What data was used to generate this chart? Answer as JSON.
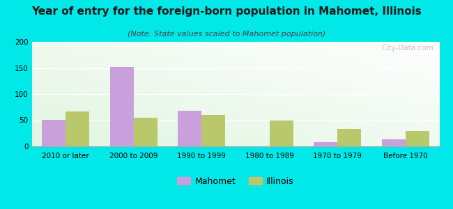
{
  "title": "Year of entry for the foreign-born population in Mahomet, Illinois",
  "subtitle": "(Note: State values scaled to Mahomet population)",
  "categories": [
    "2010 or later",
    "2000 to 2009",
    "1990 to 1999",
    "1980 to 1989",
    "1970 to 1979",
    "Before 1970"
  ],
  "mahomet_values": [
    51,
    152,
    68,
    0,
    8,
    14
  ],
  "illinois_values": [
    67,
    55,
    60,
    50,
    34,
    30
  ],
  "mahomet_color": "#c9a0dc",
  "illinois_color": "#b8c86a",
  "ylim": [
    0,
    200
  ],
  "yticks": [
    0,
    50,
    100,
    150,
    200
  ],
  "background_outer": "#00e8e8",
  "bar_width": 0.35,
  "title_fontsize": 11,
  "subtitle_fontsize": 8,
  "tick_fontsize": 7.5,
  "legend_fontsize": 9,
  "watermark": "City-Data.com"
}
